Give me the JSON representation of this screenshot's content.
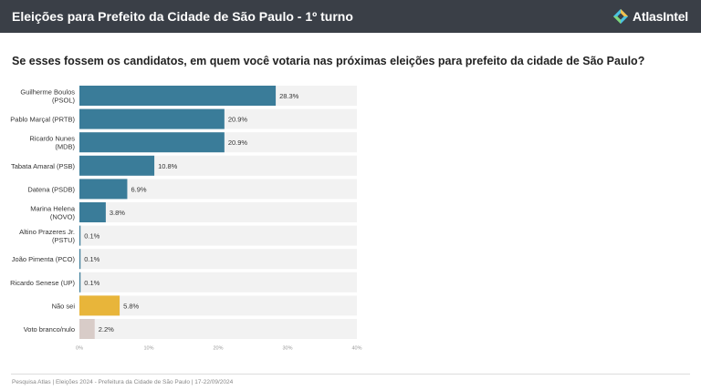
{
  "header": {
    "title": "Eleições para Prefeito da Cidade de São Paulo - 1º turno",
    "brand": "AtlasIntel"
  },
  "question": "Se esses fossem os candidatos, em quem você votaria nas próximas eleições para prefeito da cidade de São Paulo?",
  "chart_data": {
    "type": "bar",
    "orientation": "horizontal",
    "title": "Se esses fossem os candidatos, em quem você votaria nas próximas eleições para prefeito da cidade de São Paulo?",
    "categories": [
      [
        "Guilherme Boulos",
        "(PSOL)"
      ],
      [
        "Pablo Marçal (PRTB)"
      ],
      [
        "Ricardo Nunes",
        "(MDB)"
      ],
      [
        "Tabata Amaral (PSB)"
      ],
      [
        "Datena (PSDB)"
      ],
      [
        "Marina Helena",
        "(NOVO)"
      ],
      [
        "Altino Prazeres Jr.",
        "(PSTU)"
      ],
      [
        "João Pimenta (PCO)"
      ],
      [
        "Ricardo Senese (UP)"
      ],
      [
        "Não sei"
      ],
      [
        "Voto branco/nulo"
      ]
    ],
    "values": [
      28.3,
      20.9,
      20.9,
      10.8,
      6.9,
      3.8,
      0.1,
      0.1,
      0.1,
      5.8,
      2.2
    ],
    "value_labels": [
      "28.3%",
      "20.9%",
      "20.9%",
      "10.8%",
      "6.9%",
      "3.8%",
      "0.1%",
      "0.1%",
      "0.1%",
      "5.8%",
      "2.2%"
    ],
    "bar_colors": [
      "#3a7c99",
      "#3a7c99",
      "#3a7c99",
      "#3a7c99",
      "#3a7c99",
      "#3a7c99",
      "#3a7c99",
      "#3a7c99",
      "#3a7c99",
      "#e8b53a",
      "#d8ccc8"
    ],
    "xlim": [
      0,
      40
    ],
    "xticks": [
      0,
      10,
      20,
      30,
      40
    ],
    "xtick_labels": [
      "0%",
      "10%",
      "20%",
      "30%",
      "40%"
    ],
    "xlabel": "",
    "ylabel": ""
  },
  "footer": {
    "text": "Pesquisa Atlas  |  Eleições 2024 - Prefeitura da Cidade de São Paulo  |  17-22/09/2024"
  },
  "colors": {
    "header_bg": "#3a3f47",
    "bar_main": "#3a7c99",
    "bar_unsure": "#e8b53a",
    "bar_blank": "#d8ccc8",
    "track_bg": "#f2f2f2"
  }
}
